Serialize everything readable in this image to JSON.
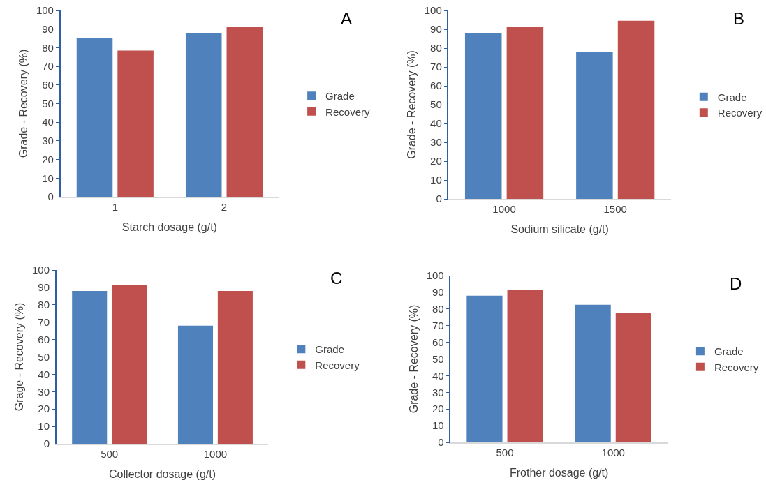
{
  "chart_data": [
    {
      "type": "bar",
      "annotations": [
        "A"
      ],
      "xlabel": "Starch dosage (g/t)",
      "ylabel": "Grade - Recovery (%)",
      "categories": [
        "1",
        "2"
      ],
      "series": [
        {
          "name": "Grade",
          "color": "#4f81bd",
          "values": [
            85,
            88
          ]
        },
        {
          "name": "Recovery",
          "color": "#c0504d",
          "values": [
            78.5,
            91
          ]
        }
      ],
      "ylim": [
        0,
        100
      ],
      "yticks": [
        0,
        10,
        20,
        30,
        40,
        50,
        60,
        70,
        80,
        90,
        100
      ],
      "grid": false,
      "legend": "right"
    },
    {
      "type": "bar",
      "annotations": [
        "B"
      ],
      "xlabel": "Sodium silicate (g/t)",
      "ylabel": "Grade - Recovery (%)",
      "categories": [
        "1000",
        "1500"
      ],
      "series": [
        {
          "name": "Grade",
          "color": "#4f81bd",
          "values": [
            88,
            78
          ]
        },
        {
          "name": "Recovery",
          "color": "#c0504d",
          "values": [
            91.5,
            94.5
          ]
        }
      ],
      "ylim": [
        0,
        100
      ],
      "yticks": [
        0,
        10,
        20,
        30,
        40,
        50,
        60,
        70,
        80,
        90,
        100
      ],
      "grid": false,
      "legend": "right"
    },
    {
      "type": "bar",
      "annotations": [
        "C"
      ],
      "xlabel": "Collector dosage (g/t)",
      "ylabel": "Grage - Recovery (%)",
      "categories": [
        "500",
        "1000"
      ],
      "series": [
        {
          "name": "Grade",
          "color": "#4f81bd",
          "values": [
            88,
            68
          ]
        },
        {
          "name": "Recovery",
          "color": "#c0504d",
          "values": [
            91.5,
            88
          ]
        }
      ],
      "ylim": [
        0,
        100
      ],
      "yticks": [
        0,
        10,
        20,
        30,
        40,
        50,
        60,
        70,
        80,
        90,
        100
      ],
      "grid": false,
      "legend": "right"
    },
    {
      "type": "bar",
      "annotations": [
        "D"
      ],
      "xlabel": "Frother dosage (g/t)",
      "ylabel": "Grade - Recovery (%)",
      "categories": [
        "500",
        "1000"
      ],
      "series": [
        {
          "name": "Grade",
          "color": "#4f81bd",
          "values": [
            88,
            82.5
          ]
        },
        {
          "name": "Recovery",
          "color": "#c0504d",
          "values": [
            91.5,
            77.5
          ]
        }
      ],
      "ylim": [
        0,
        100
      ],
      "yticks": [
        0,
        10,
        20,
        30,
        40,
        50,
        60,
        70,
        80,
        90,
        100
      ],
      "grid": false,
      "legend": "right"
    }
  ]
}
